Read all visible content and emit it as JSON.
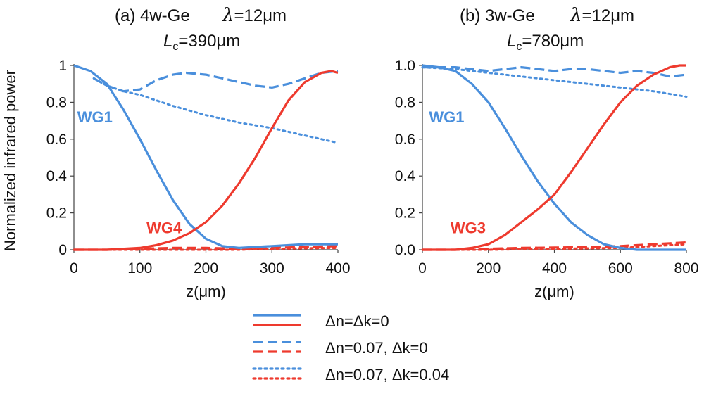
{
  "colors": {
    "blue": "#4a8fdc",
    "red": "#ee3a2e"
  },
  "ylabel": "Normalized infrared power",
  "panels": [
    {
      "title_main": "(a) 4w-Ge",
      "title_lambda_symbol": "λ",
      "title_lambda_value": "=12μm",
      "lc_symbol": "L",
      "lc_sub": "c",
      "lc_value": "=390μm"
    },
    {
      "title_main": "(b) 3w-Ge",
      "title_lambda_symbol": "λ",
      "title_lambda_value": "=12μm",
      "lc_symbol": "L",
      "lc_sub": "c",
      "lc_value": "=780μm"
    }
  ],
  "legend": {
    "entries": [
      {
        "style": "solid",
        "label": "Δn=Δk=0"
      },
      {
        "style": "dashed",
        "label": "Δn=0.07, Δk=0"
      },
      {
        "style": "dotted",
        "label": "Δn=0.07, Δk=0.04"
      }
    ]
  },
  "chart_data": [
    {
      "type": "line",
      "title": "(a) 4w-Ge λ=12μm",
      "subtitle": "Lc=390μm",
      "xlabel": "z(μm)",
      "ylabel": "Normalized infrared power",
      "xlim": [
        0,
        400
      ],
      "ylim": [
        0,
        1
      ],
      "xticks": [
        0,
        100,
        200,
        300,
        400
      ],
      "xtick_labels": [
        "0",
        "100",
        "200",
        "300",
        "400"
      ],
      "yticks": [
        0,
        0.2,
        0.4,
        0.6,
        0.8,
        1
      ],
      "ytick_labels": [
        "0",
        "0.2",
        "0.4",
        "0.6",
        "0.8",
        "1"
      ],
      "annotations": [
        {
          "text": "WG1",
          "color": "blue",
          "x": 5,
          "y": 0.69
        },
        {
          "text": "WG4",
          "color": "red",
          "x": 110,
          "y": 0.09
        }
      ],
      "series": [
        {
          "name": "WG1 Δn=Δk=0",
          "color": "blue",
          "style": "solid",
          "x": [
            0,
            25,
            50,
            75,
            100,
            125,
            150,
            175,
            200,
            225,
            250,
            300,
            350,
            400
          ],
          "y": [
            1.0,
            0.97,
            0.9,
            0.76,
            0.6,
            0.43,
            0.27,
            0.14,
            0.06,
            0.02,
            0.01,
            0.02,
            0.03,
            0.03
          ]
        },
        {
          "name": "WG4 Δn=Δk=0",
          "color": "red",
          "style": "solid",
          "x": [
            0,
            50,
            100,
            125,
            150,
            175,
            200,
            225,
            250,
            275,
            300,
            325,
            350,
            375,
            390,
            400
          ],
          "y": [
            0.0,
            0.0,
            0.01,
            0.025,
            0.05,
            0.09,
            0.15,
            0.24,
            0.36,
            0.5,
            0.66,
            0.81,
            0.91,
            0.96,
            0.97,
            0.96
          ]
        },
        {
          "name": "WG1 Δn=0.07, Δk=0",
          "color": "blue",
          "style": "dashed",
          "x": [
            30,
            50,
            75,
            100,
            125,
            150,
            170,
            200,
            225,
            250,
            275,
            300,
            325,
            350,
            375,
            400
          ],
          "y": [
            0.93,
            0.89,
            0.86,
            0.87,
            0.92,
            0.95,
            0.96,
            0.95,
            0.93,
            0.91,
            0.89,
            0.88,
            0.9,
            0.93,
            0.96,
            0.97
          ]
        },
        {
          "name": "WG4 Δn=0.07, Δk=0",
          "color": "red",
          "style": "dashed",
          "x": [
            0,
            50,
            100,
            150,
            200,
            250,
            300,
            350,
            400
          ],
          "y": [
            0.0,
            0.0,
            0.005,
            0.01,
            0.01,
            0.005,
            0.01,
            0.015,
            0.02
          ]
        },
        {
          "name": "WG1 Δn=0.07, Δk=0.04",
          "color": "blue",
          "style": "dotted",
          "x": [
            30,
            50,
            75,
            100,
            150,
            200,
            250,
            300,
            350,
            400
          ],
          "y": [
            0.93,
            0.89,
            0.86,
            0.84,
            0.78,
            0.73,
            0.69,
            0.66,
            0.62,
            0.58
          ]
        },
        {
          "name": "WG4 Δn=0.07, Δk=0.04",
          "color": "red",
          "style": "dotted",
          "x": [
            0,
            100,
            200,
            250,
            300,
            350,
            400
          ],
          "y": [
            0.0,
            0.0,
            0.0,
            0.0,
            0.005,
            0.008,
            0.01
          ]
        }
      ]
    },
    {
      "type": "line",
      "title": "(b) 3w-Ge λ=12μm",
      "subtitle": "Lc=780μm",
      "xlabel": "z(μm)",
      "ylabel": "",
      "xlim": [
        0,
        800
      ],
      "ylim": [
        0,
        1
      ],
      "xticks": [
        0,
        200,
        400,
        600,
        800
      ],
      "xtick_labels": [
        "0",
        "200",
        "400",
        "600",
        "800"
      ],
      "yticks": [
        0,
        0.2,
        0.4,
        0.6,
        0.8,
        1
      ],
      "ytick_labels": [
        "0.0",
        "0.2",
        "0.4",
        "0.6",
        "0.8",
        "1.0"
      ],
      "annotations": [
        {
          "text": "WG1",
          "color": "blue",
          "x": 20,
          "y": 0.69
        },
        {
          "text": "WG3",
          "color": "red",
          "x": 85,
          "y": 0.09
        }
      ],
      "series": [
        {
          "name": "WG1 Δn=Δk=0",
          "color": "blue",
          "style": "solid",
          "x": [
            0,
            50,
            100,
            150,
            200,
            250,
            300,
            350,
            400,
            450,
            500,
            550,
            600,
            650,
            700,
            800
          ],
          "y": [
            1.0,
            0.99,
            0.97,
            0.9,
            0.8,
            0.66,
            0.51,
            0.37,
            0.25,
            0.15,
            0.08,
            0.03,
            0.01,
            0.0,
            0.0,
            0.0
          ]
        },
        {
          "name": "WG3 Δn=Δk=0",
          "color": "red",
          "style": "solid",
          "x": [
            0,
            100,
            150,
            200,
            250,
            300,
            350,
            400,
            450,
            500,
            550,
            600,
            650,
            700,
            750,
            780,
            800
          ],
          "y": [
            0.0,
            0.0,
            0.01,
            0.03,
            0.08,
            0.15,
            0.22,
            0.3,
            0.42,
            0.55,
            0.68,
            0.8,
            0.89,
            0.95,
            0.99,
            1.0,
            1.0
          ]
        },
        {
          "name": "WG1 Δn=0.07, Δk=0",
          "color": "blue",
          "style": "dashed",
          "x": [
            0,
            100,
            150,
            200,
            250,
            300,
            350,
            400,
            450,
            500,
            550,
            600,
            650,
            700,
            750,
            800
          ],
          "y": [
            0.99,
            0.99,
            0.98,
            0.97,
            0.98,
            0.99,
            0.98,
            0.97,
            0.98,
            0.98,
            0.97,
            0.96,
            0.97,
            0.96,
            0.94,
            0.95
          ]
        },
        {
          "name": "WG3 Δn=0.07, Δk=0",
          "color": "red",
          "style": "dashed",
          "x": [
            0,
            100,
            200,
            300,
            400,
            500,
            600,
            700,
            800
          ],
          "y": [
            0.0,
            0.0,
            0.005,
            0.01,
            0.012,
            0.015,
            0.02,
            0.03,
            0.04
          ]
        },
        {
          "name": "WG1 Δn=0.07, Δk=0.04",
          "color": "blue",
          "style": "dotted",
          "x": [
            0,
            100,
            200,
            300,
            400,
            500,
            600,
            700,
            800
          ],
          "y": [
            0.99,
            0.98,
            0.96,
            0.94,
            0.92,
            0.9,
            0.88,
            0.86,
            0.83
          ]
        },
        {
          "name": "WG3 Δn=0.07, Δk=0.04",
          "color": "red",
          "style": "dotted",
          "x": [
            0,
            200,
            400,
            600,
            700,
            800
          ],
          "y": [
            0.0,
            0.0,
            0.005,
            0.01,
            0.02,
            0.03
          ]
        }
      ]
    }
  ]
}
